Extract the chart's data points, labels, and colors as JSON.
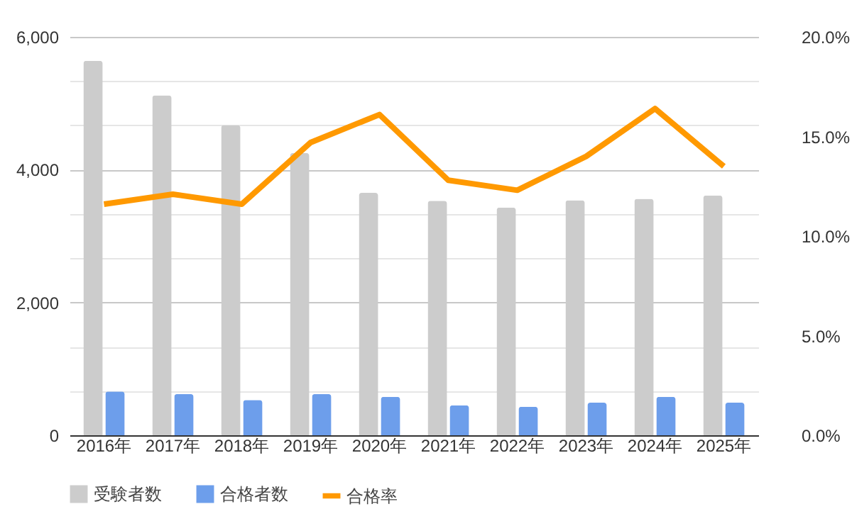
{
  "chart_data": {
    "type": "bar",
    "categories": [
      "2016年",
      "2017年",
      "2018年",
      "2019年",
      "2020年",
      "2021年",
      "2022年",
      "2023年",
      "2024年",
      "2025年"
    ],
    "series": [
      {
        "name": "受験者数",
        "color": "#cccccc",
        "values": [
          5640,
          5120,
          4670,
          4250,
          3650,
          3530,
          3430,
          3540,
          3560,
          3610
        ]
      },
      {
        "name": "合格者数",
        "color": "#6d9eeb",
        "values": [
          660,
          620,
          530,
          620,
          580,
          450,
          430,
          490,
          580,
          490
        ]
      },
      {
        "name": "合格率",
        "type": "line",
        "axis": "y2",
        "color": "#ff9900",
        "values": [
          11.6,
          12.1,
          11.6,
          14.7,
          16.1,
          12.8,
          12.3,
          14.0,
          16.4,
          13.5
        ]
      }
    ],
    "ylim": [
      0,
      6000
    ],
    "yticks": [
      {
        "value": 0,
        "label": "0"
      },
      {
        "value": 666.7,
        "label": null
      },
      {
        "value": 1333.3,
        "label": null
      },
      {
        "value": 2000,
        "label": "2,000"
      },
      {
        "value": 2666.7,
        "label": null
      },
      {
        "value": 3333.3,
        "label": null
      },
      {
        "value": 4000,
        "label": "4,000"
      },
      {
        "value": 4666.7,
        "label": null
      },
      {
        "value": 5333.3,
        "label": null
      },
      {
        "value": 6000,
        "label": "6,000"
      }
    ],
    "y2lim": [
      0,
      20
    ],
    "y2ticks": [
      {
        "value": 0,
        "label": "0.0%"
      },
      {
        "value": 5,
        "label": "5.0%"
      },
      {
        "value": 10,
        "label": "10.0%"
      },
      {
        "value": 15,
        "label": "15.0%"
      },
      {
        "value": 20,
        "label": "20.0%"
      }
    ],
    "grid": "y",
    "legend": "bottom"
  }
}
